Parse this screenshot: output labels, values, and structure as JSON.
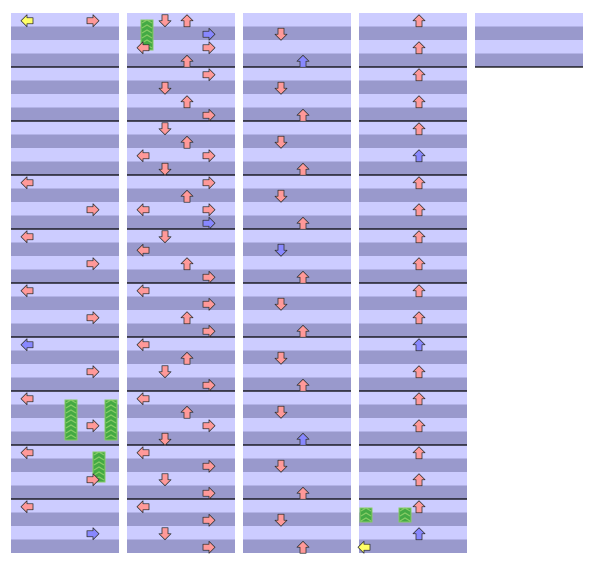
{
  "colors": {
    "lane_light": "#ccccff",
    "lane_dark": "#9999cc",
    "measure_line": "#000000",
    "note_quarter": "#ff9999",
    "note_eighth": "#8888ff",
    "note_mine": "#ffff66",
    "note_outline": "#333333",
    "hold_body": "#44aa44",
    "hold_stripe": "#88cc66"
  },
  "measures_per_column": 10,
  "columns": 5,
  "notes": [
    {
      "id": "n1",
      "lane": "left",
      "beat": 0,
      "color": "note_mine"
    },
    {
      "id": "n2",
      "lane": "right",
      "beat": 0,
      "color": "note_quarter"
    },
    {
      "id": "n3",
      "lane": "down",
      "beat": 40,
      "color": "note_quarter"
    },
    {
      "id": "n4",
      "lane": "up",
      "beat": 40,
      "color": "note_quarter"
    },
    {
      "id": "n5",
      "lane": "right",
      "beat": 41,
      "color": "note_eighth"
    },
    {
      "id": "n6",
      "lane": "left",
      "beat": 42,
      "color": "note_quarter"
    },
    {
      "id": "n7",
      "lane": "right",
      "beat": 42,
      "color": "note_quarter"
    },
    {
      "id": "n8",
      "lane": "up",
      "beat": 43,
      "color": "note_quarter"
    },
    {
      "id": "n9",
      "lane": "right",
      "beat": 44,
      "color": "note_quarter"
    },
    {
      "id": "n10",
      "lane": "down",
      "beat": 45,
      "color": "note_quarter"
    },
    {
      "id": "n11",
      "lane": "up",
      "beat": 46,
      "color": "note_quarter"
    },
    {
      "id": "n12",
      "lane": "right",
      "beat": 47,
      "color": "note_quarter"
    },
    {
      "id": "n13",
      "lane": "down",
      "beat": 48,
      "color": "note_quarter"
    },
    {
      "id": "n14",
      "lane": "up",
      "beat": 49,
      "color": "note_quarter"
    },
    {
      "id": "n15",
      "lane": "left",
      "beat": 50,
      "color": "note_quarter"
    },
    {
      "id": "n16",
      "lane": "right",
      "beat": 50,
      "color": "note_quarter"
    },
    {
      "id": "n17",
      "lane": "down",
      "beat": 51,
      "color": "note_quarter"
    },
    {
      "id": "n18",
      "lane": "right",
      "beat": 52,
      "color": "note_quarter"
    },
    {
      "id": "n19",
      "lane": "up",
      "beat": 53,
      "color": "note_quarter"
    },
    {
      "id": "n20",
      "lane": "left",
      "beat": 54,
      "color": "note_quarter"
    },
    {
      "id": "n21",
      "lane": "right",
      "beat": 54,
      "color": "note_quarter"
    },
    {
      "id": "n22",
      "lane": "right",
      "beat": 55,
      "color": "note_eighth"
    },
    {
      "id": "n23",
      "lane": "down",
      "beat": 56,
      "color": "note_quarter"
    },
    {
      "id": "n24",
      "lane": "left",
      "beat": 57,
      "color": "note_quarter"
    },
    {
      "id": "n25",
      "lane": "up",
      "beat": 58,
      "color": "note_quarter"
    },
    {
      "id": "n26",
      "lane": "right",
      "beat": 59,
      "color": "note_quarter"
    },
    {
      "id": "n27",
      "lane": "left",
      "beat": 60,
      "color": "note_quarter"
    },
    {
      "id": "n28",
      "lane": "right",
      "beat": 61,
      "color": "note_quarter"
    },
    {
      "id": "n29",
      "lane": "up",
      "beat": 62,
      "color": "note_quarter"
    },
    {
      "id": "n30",
      "lane": "right",
      "beat": 63,
      "color": "note_quarter"
    },
    {
      "id": "n31",
      "lane": "left",
      "beat": 64,
      "color": "note_quarter"
    },
    {
      "id": "n32",
      "lane": "up",
      "beat": 65,
      "color": "note_quarter"
    },
    {
      "id": "n33",
      "lane": "down",
      "beat": 66,
      "color": "note_quarter"
    },
    {
      "id": "n34",
      "lane": "right",
      "beat": 67,
      "color": "note_quarter"
    },
    {
      "id": "n35",
      "lane": "left",
      "beat": 68,
      "color": "note_quarter"
    },
    {
      "id": "n36",
      "lane": "up",
      "beat": 69,
      "color": "note_quarter"
    },
    {
      "id": "n37",
      "lane": "right",
      "beat": 70,
      "color": "note_quarter"
    },
    {
      "id": "n38",
      "lane": "down",
      "beat": 71,
      "color": "note_quarter"
    },
    {
      "id": "n39",
      "lane": "left",
      "beat": 72,
      "color": "note_quarter"
    },
    {
      "id": "n40",
      "lane": "right",
      "beat": 73,
      "color": "note_quarter"
    },
    {
      "id": "n41",
      "lane": "down",
      "beat": 74,
      "color": "note_quarter"
    },
    {
      "id": "n42",
      "lane": "right",
      "beat": 75,
      "color": "note_quarter"
    },
    {
      "id": "n43",
      "lane": "left",
      "beat": 76,
      "color": "note_quarter"
    },
    {
      "id": "n44",
      "lane": "right",
      "beat": 77,
      "color": "note_quarter"
    },
    {
      "id": "n45",
      "lane": "down",
      "beat": 78,
      "color": "note_quarter"
    },
    {
      "id": "n46",
      "lane": "right",
      "beat": 79,
      "color": "note_quarter"
    }
  ]
}
